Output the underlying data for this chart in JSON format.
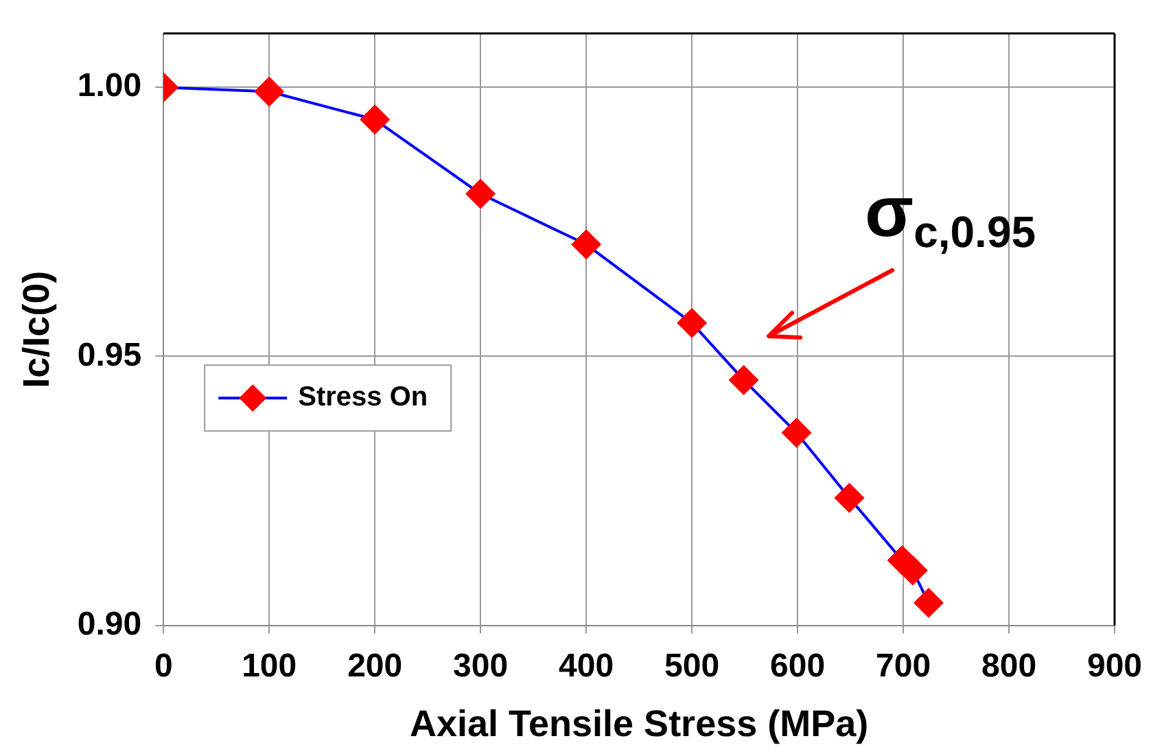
{
  "chart_data": {
    "type": "line",
    "xlabel": "Axial Tensile Stress (MPa)",
    "ylabel": "Ic/Ic(0)",
    "x": [
      0,
      100,
      200,
      300,
      400,
      500,
      549,
      599,
      649,
      699,
      709,
      724
    ],
    "series": [
      {
        "name": "Stress On",
        "color": "#0000ff",
        "colors": [
          "#ff0000",
          "#ff0000",
          "#ff0000",
          "#ff0000",
          "#ff0000",
          "#ff0000",
          "#ff0000",
          "#ff0000",
          "#ff0000",
          "#ff0000",
          "#ff0000",
          "#ff0000"
        ],
        "values": [
          1.0,
          0.9992,
          0.994,
          0.9802,
          0.9708,
          0.9562,
          0.9456,
          0.9358,
          0.9237,
          0.9121,
          0.9102,
          0.9042
        ]
      }
    ],
    "xlim": [
      0,
      900
    ],
    "xticks": [
      0,
      100,
      200,
      300,
      400,
      500,
      600,
      700,
      800,
      900
    ],
    "ylim": [
      0.9,
      1.01
    ],
    "yticks": [
      {
        "value": 0.9,
        "label": "0.90"
      },
      {
        "value": 0.95,
        "label": "0.95"
      },
      {
        "value": 1.0,
        "label": "1.00"
      }
    ],
    "grid": true,
    "legend": "left",
    "marker": "diamond",
    "line_style": "solid",
    "annotations": [
      "σ$_{c,0.95}$"
    ]
  }
}
